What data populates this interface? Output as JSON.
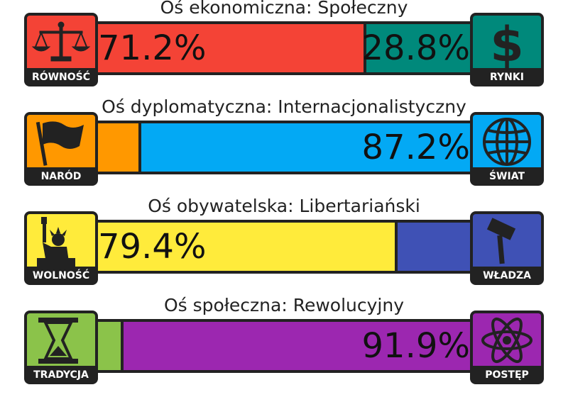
{
  "colors": {
    "frame": "#222222",
    "equality": "#f44336",
    "markets": "#00897b",
    "nation": "#ff9800",
    "globe": "#03a9f4",
    "liberty": "#ffeb3b",
    "authority": "#3f51b5",
    "tradition": "#8bc34a",
    "progress": "#9c27b0"
  },
  "axes": [
    {
      "title": "Oś ekonomiczna: Społeczny",
      "left": {
        "label": "RÓWNOŚĆ",
        "icon": "scales-icon",
        "percent_text": "71.2%",
        "value": 71.2
      },
      "right": {
        "label": "RYNKI",
        "icon": "dollar-icon",
        "percent_text": "28.8%",
        "value": 28.8
      }
    },
    {
      "title": "Oś dyplomatyczna: Internacjonalistyczny",
      "left": {
        "label": "NARÓD",
        "icon": "flag-icon",
        "percent_text": "",
        "value": 12.8
      },
      "right": {
        "label": "ŚWIAT",
        "icon": "globe-icon",
        "percent_text": "87.2%",
        "value": 87.2
      }
    },
    {
      "title": "Oś obywatelska: Libertariański",
      "left": {
        "label": "WOLNOŚĆ",
        "icon": "statue-of-liberty-icon",
        "percent_text": "79.4%",
        "value": 79.4
      },
      "right": {
        "label": "WŁADZA",
        "icon": "gavel-icon",
        "percent_text": "",
        "value": 20.6
      }
    },
    {
      "title": "Oś społeczna: Rewolucyjny",
      "left": {
        "label": "TRADYCJA",
        "icon": "hourglass-icon",
        "percent_text": "",
        "value": 8.1
      },
      "right": {
        "label": "POSTĘP",
        "icon": "atom-icon",
        "percent_text": "91.9%",
        "value": 91.9
      }
    }
  ]
}
